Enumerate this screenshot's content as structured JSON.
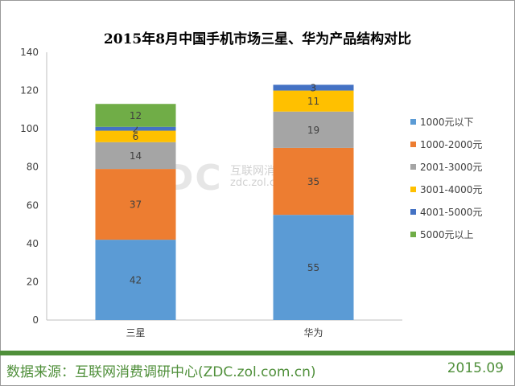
{
  "chart_data": {
    "type": "bar",
    "stacked": true,
    "title": "2015年8月中国手机市场三星、华为产品结构对比",
    "categories": [
      "三星",
      "华为"
    ],
    "ylim": [
      0,
      140
    ],
    "yticks": [
      0,
      20,
      40,
      60,
      80,
      100,
      120,
      140
    ],
    "gridlines": false,
    "legend_position": "right",
    "series": [
      {
        "name": "1000元以下",
        "color": "#5b9bd5",
        "values": [
          42,
          55
        ]
      },
      {
        "name": "1000-2000元",
        "color": "#ed7d31",
        "values": [
          37,
          35
        ]
      },
      {
        "name": "2001-3000元",
        "color": "#a5a5a5",
        "values": [
          14,
          19
        ]
      },
      {
        "name": "3001-4000元",
        "color": "#ffc000",
        "values": [
          6,
          11
        ]
      },
      {
        "name": "4001-5000元",
        "color": "#4472c4",
        "values": [
          2,
          3
        ]
      },
      {
        "name": "5000元以上",
        "color": "#70ad47",
        "values": [
          12,
          0
        ]
      }
    ]
  },
  "watermark": {
    "logo": "ZDC",
    "name": "互联网消费调研中心",
    "url": "zdc.zol.com.cn"
  },
  "footer": {
    "source": "数据来源：互联网消费调研中心(ZDC.zol.com.cn)",
    "date": "2015.09"
  }
}
